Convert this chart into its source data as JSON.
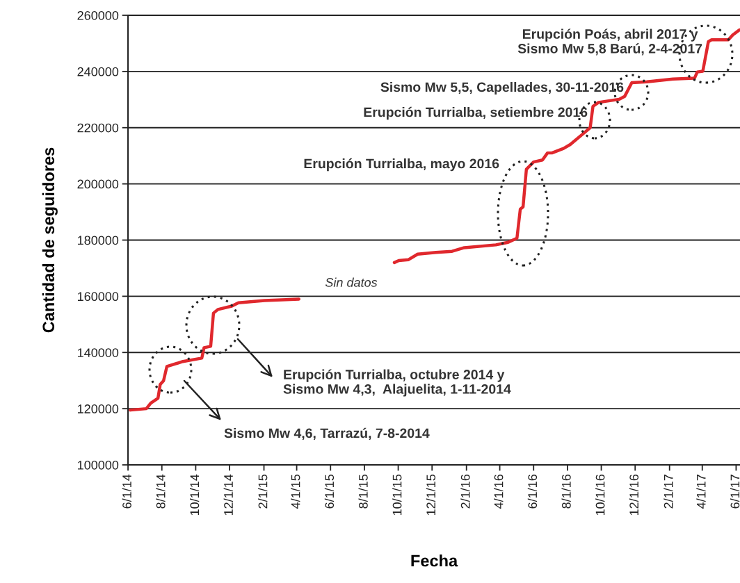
{
  "chart_data": {
    "type": "line",
    "xlabel": "Fecha",
    "ylabel": "Cantidad de seguidores",
    "xlim": [
      "2014-06-01",
      "2017-06-08"
    ],
    "ylim": [
      100000,
      260000
    ],
    "yticks": [
      100000,
      120000,
      140000,
      160000,
      180000,
      200000,
      220000,
      240000,
      260000
    ],
    "xticks": [
      {
        "value": "2014-06-01",
        "label": "6/1/14"
      },
      {
        "value": "2014-08-01",
        "label": "8/1/14"
      },
      {
        "value": "2014-10-01",
        "label": "10/1/14"
      },
      {
        "value": "2014-12-01",
        "label": "12/1/14"
      },
      {
        "value": "2015-02-01",
        "label": "2/1/15"
      },
      {
        "value": "2015-04-01",
        "label": "4/1/15"
      },
      {
        "value": "2015-06-01",
        "label": "6/1/15"
      },
      {
        "value": "2015-08-01",
        "label": "8/1/15"
      },
      {
        "value": "2015-10-01",
        "label": "10/1/15"
      },
      {
        "value": "2015-12-01",
        "label": "12/1/15"
      },
      {
        "value": "2016-02-01",
        "label": "2/1/16"
      },
      {
        "value": "2016-04-01",
        "label": "4/1/16"
      },
      {
        "value": "2016-06-01",
        "label": "6/1/16"
      },
      {
        "value": "2016-08-01",
        "label": "8/1/16"
      },
      {
        "value": "2016-10-01",
        "label": "10/1/16"
      },
      {
        "value": "2016-12-01",
        "label": "12/1/16"
      },
      {
        "value": "2017-02-01",
        "label": "2/1/17"
      },
      {
        "value": "2017-04-01",
        "label": "4/1/17"
      },
      {
        "value": "2017-06-01",
        "label": "6/1/17"
      }
    ],
    "grid": "y",
    "marker": "none",
    "line_style": "solid",
    "series": [
      {
        "color": "#e0282d",
        "x": [
          "2014-06-05",
          "2014-07-04",
          "2014-07-12",
          "2014-07-25",
          "2014-07-29",
          "2014-08-04",
          "2014-08-10",
          "2014-09-08",
          "2014-10-12",
          "2014-10-16",
          "2014-10-28",
          "2014-11-02",
          "2014-11-10",
          "2014-12-05",
          "2014-12-17",
          "2015-02-02",
          "2015-04-05",
          "2015-07-01",
          "2015-09-24",
          "2015-10-02",
          "2015-10-19",
          "2015-11-05",
          "2015-12-08",
          "2016-01-06",
          "2016-01-28",
          "2016-03-25",
          "2016-04-16",
          "2016-05-02",
          "2016-05-08",
          "2016-05-13",
          "2016-05-19",
          "2016-06-01",
          "2016-06-17",
          "2016-06-26",
          "2016-07-04",
          "2016-07-25",
          "2016-08-06",
          "2016-09-01",
          "2016-09-11",
          "2016-09-16",
          "2016-09-26",
          "2016-11-02",
          "2016-11-12",
          "2016-11-25",
          "2016-12-22",
          "2017-02-07",
          "2017-03-18",
          "2017-03-23",
          "2017-04-02",
          "2017-04-12",
          "2017-04-18",
          "2017-05-18",
          "2017-05-26",
          "2017-06-07"
        ],
        "values": [
          119500,
          120000,
          122000,
          123700,
          128600,
          129900,
          135000,
          136800,
          138000,
          141700,
          142200,
          154000,
          155300,
          156500,
          157700,
          158500,
          159000,
          null,
          172000,
          172700,
          173000,
          175000,
          175600,
          176000,
          177300,
          178300,
          179200,
          180700,
          191000,
          191800,
          205200,
          207800,
          208500,
          211000,
          211000,
          212600,
          214000,
          218300,
          220000,
          227600,
          229000,
          230100,
          231100,
          236000,
          236300,
          237300,
          237600,
          239800,
          240100,
          250600,
          251300,
          251300,
          253000,
          254800
        ]
      }
    ],
    "annotations": [
      "Sin datos",
      "Sismo Mw 4,6, Tarrazú, 7-8-2014",
      "Erupción Turrialba, octubre 2014 y\nSismo Mw 4,3,  Alajuelita, 1-11-2014",
      "Erupción Turrialba, mayo 2016",
      "Erupción Turrialba, setiembre 2016",
      "Sismo Mw 5,5, Capellades, 30-11-2016",
      "Erupción Poás, abril 2017 y\nSismo Mw 5,8 Barú, 2-4-2017"
    ]
  }
}
